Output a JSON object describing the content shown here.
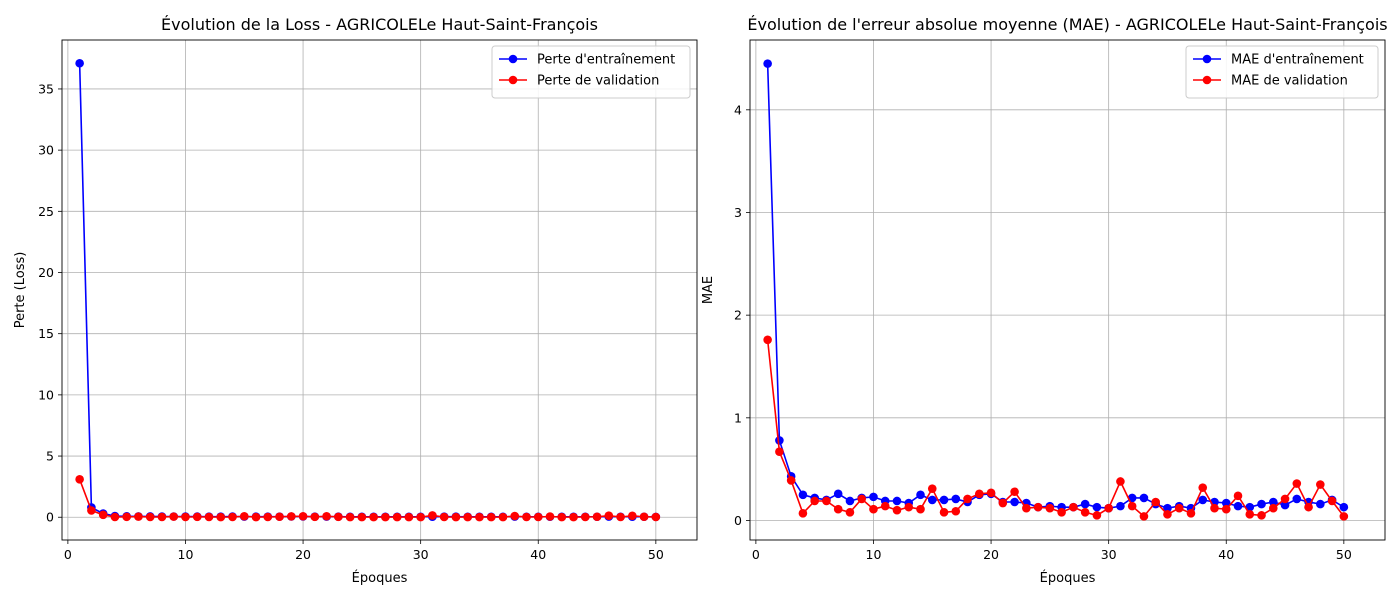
{
  "chart_data": [
    {
      "type": "line",
      "title": "Évolution de la Loss - AGRICOLELe Haut-Saint-François",
      "xlabel": "Époques",
      "ylabel": "Perte (Loss)",
      "xlim": [
        -0.5,
        53.5
      ],
      "ylim": [
        -1.86,
        39.0
      ],
      "xticks": [
        0,
        10,
        20,
        30,
        40,
        50
      ],
      "yticks": [
        0,
        5,
        10,
        15,
        20,
        25,
        30,
        35
      ],
      "grid": true,
      "legend_position": "top-right",
      "x": [
        1,
        2,
        3,
        4,
        5,
        6,
        7,
        8,
        9,
        10,
        11,
        12,
        13,
        14,
        15,
        16,
        17,
        18,
        19,
        20,
        21,
        22,
        23,
        24,
        25,
        26,
        27,
        28,
        29,
        30,
        31,
        32,
        33,
        34,
        35,
        36,
        37,
        38,
        39,
        40,
        41,
        42,
        43,
        44,
        45,
        46,
        47,
        48,
        49,
        50
      ],
      "series": [
        {
          "name": "Perte d'entraînement",
          "color": "#0000ff",
          "values": [
            37.1,
            0.8,
            0.3,
            0.1,
            0.08,
            0.07,
            0.07,
            0.06,
            0.06,
            0.06,
            0.06,
            0.05,
            0.05,
            0.06,
            0.05,
            0.05,
            0.05,
            0.05,
            0.06,
            0.06,
            0.05,
            0.05,
            0.05,
            0.04,
            0.04,
            0.04,
            0.04,
            0.04,
            0.04,
            0.04,
            0.04,
            0.05,
            0.05,
            0.04,
            0.04,
            0.04,
            0.04,
            0.05,
            0.04,
            0.04,
            0.04,
            0.04,
            0.04,
            0.04,
            0.04,
            0.05,
            0.04,
            0.04,
            0.04,
            0.03
          ]
        },
        {
          "name": "Perte de validation",
          "color": "#ff0000",
          "values": [
            3.1,
            0.55,
            0.2,
            0.02,
            0.03,
            0.05,
            0.02,
            0.02,
            0.05,
            0.02,
            0.03,
            0.02,
            0.01,
            0.02,
            0.08,
            0.01,
            0.02,
            0.04,
            0.07,
            0.08,
            0.03,
            0.08,
            0.03,
            0.01,
            0.01,
            0.01,
            0.01,
            0.01,
            0.01,
            0.01,
            0.15,
            0.02,
            0.01,
            0.01,
            0.01,
            0.01,
            0.01,
            0.1,
            0.02,
            0.02,
            0.06,
            0.01,
            0.01,
            0.02,
            0.04,
            0.13,
            0.02,
            0.12,
            0.04,
            0.02
          ]
        }
      ]
    },
    {
      "type": "line",
      "title": "Évolution de l'erreur absolue moyenne (MAE) - AGRICOLELe Haut-Saint-François",
      "xlabel": "Époques",
      "ylabel": "MAE",
      "xlim": [
        -0.5,
        53.5
      ],
      "ylim": [
        -0.19,
        4.68
      ],
      "xticks": [
        0,
        10,
        20,
        30,
        40,
        50
      ],
      "yticks": [
        0,
        1,
        2,
        3,
        4
      ],
      "grid": true,
      "legend_position": "top-right",
      "x": [
        1,
        2,
        3,
        4,
        5,
        6,
        7,
        8,
        9,
        10,
        11,
        12,
        13,
        14,
        15,
        16,
        17,
        18,
        19,
        20,
        21,
        22,
        23,
        24,
        25,
        26,
        27,
        28,
        29,
        30,
        31,
        32,
        33,
        34,
        35,
        36,
        37,
        38,
        39,
        40,
        41,
        42,
        43,
        44,
        45,
        46,
        47,
        48,
        49,
        50
      ],
      "series": [
        {
          "name": "MAE d'entraînement",
          "color": "#0000ff",
          "values": [
            4.45,
            0.78,
            0.43,
            0.25,
            0.22,
            0.2,
            0.26,
            0.19,
            0.22,
            0.23,
            0.19,
            0.19,
            0.17,
            0.25,
            0.2,
            0.2,
            0.21,
            0.18,
            0.25,
            0.26,
            0.18,
            0.18,
            0.17,
            0.13,
            0.14,
            0.13,
            0.13,
            0.16,
            0.13,
            0.12,
            0.14,
            0.22,
            0.22,
            0.16,
            0.12,
            0.14,
            0.12,
            0.2,
            0.18,
            0.17,
            0.14,
            0.13,
            0.16,
            0.18,
            0.15,
            0.21,
            0.18,
            0.16,
            0.2,
            0.13
          ]
        },
        {
          "name": "MAE de validation",
          "color": "#ff0000",
          "values": [
            1.76,
            0.67,
            0.39,
            0.07,
            0.19,
            0.19,
            0.11,
            0.08,
            0.21,
            0.11,
            0.14,
            0.1,
            0.13,
            0.11,
            0.31,
            0.08,
            0.09,
            0.21,
            0.26,
            0.27,
            0.17,
            0.28,
            0.12,
            0.13,
            0.12,
            0.08,
            0.13,
            0.08,
            0.05,
            0.12,
            0.38,
            0.14,
            0.04,
            0.18,
            0.06,
            0.12,
            0.07,
            0.32,
            0.12,
            0.11,
            0.24,
            0.06,
            0.05,
            0.12,
            0.21,
            0.36,
            0.13,
            0.35,
            0.19,
            0.04
          ]
        }
      ]
    }
  ]
}
